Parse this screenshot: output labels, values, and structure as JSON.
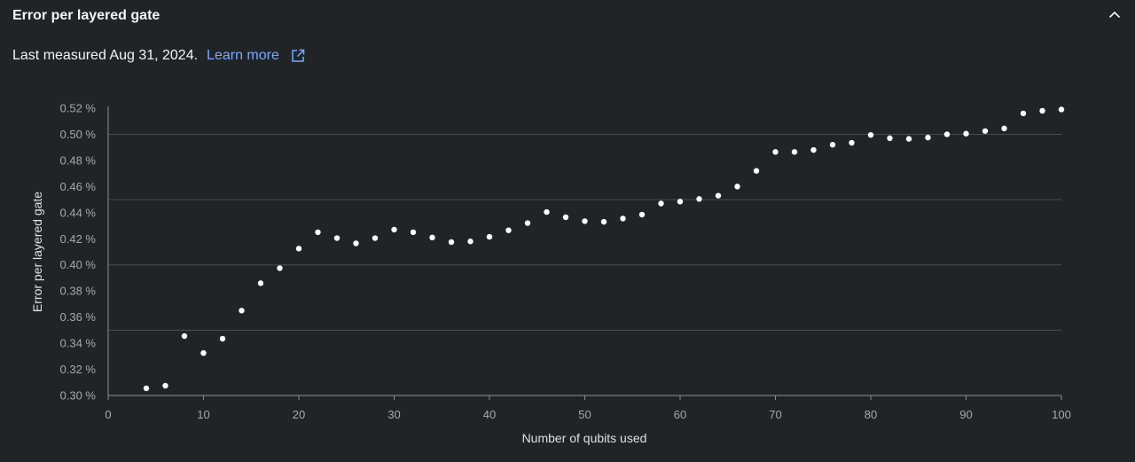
{
  "panel": {
    "title": "Error per layered gate",
    "collapse_icon": "chevron-up-icon"
  },
  "subtitle": {
    "text": "Last measured Aug 31, 2024.",
    "link_label": "Learn more",
    "link_icon": "external-link-icon"
  },
  "colors": {
    "background": "#212427",
    "point": "#ffffff",
    "link": "#78a9ff",
    "grid": "#4a4d50"
  },
  "chart_data": {
    "type": "scatter",
    "title": "",
    "xlabel": "Number of qubits used",
    "ylabel": "Error per layered gate",
    "xlim": [
      0,
      100
    ],
    "ylim": [
      0.3,
      0.52
    ],
    "x_ticks": [
      0,
      10,
      20,
      30,
      40,
      50,
      60,
      70,
      80,
      90,
      100
    ],
    "x_tick_labels": [
      "0",
      "10",
      "20",
      "30",
      "40",
      "50",
      "60",
      "70",
      "80",
      "90",
      "100"
    ],
    "y_ticks": [
      0.3,
      0.32,
      0.34,
      0.36,
      0.38,
      0.4,
      0.42,
      0.44,
      0.46,
      0.48,
      0.5,
      0.52
    ],
    "y_tick_labels": [
      "0.30 %",
      "0.32 %",
      "0.34 %",
      "0.36 %",
      "0.38 %",
      "0.40 %",
      "0.42 %",
      "0.44 %",
      "0.46 %",
      "0.48 %",
      "0.50 %",
      "0.52 %"
    ],
    "grid_y": [
      0.35,
      0.4,
      0.45,
      0.5
    ],
    "series": [
      {
        "x": [
          4,
          6,
          8,
          10,
          12,
          14,
          16,
          18,
          20,
          22,
          24,
          26,
          28,
          30,
          32,
          34,
          36,
          38,
          40,
          42,
          44,
          46,
          48,
          50,
          52,
          54,
          56,
          58,
          60,
          62,
          64,
          66,
          68,
          70,
          72,
          74,
          76,
          78,
          80,
          82,
          84,
          86,
          88,
          90,
          92,
          94,
          96,
          98,
          100
        ],
        "y": [
          0.3055,
          0.3075,
          0.3455,
          0.3325,
          0.3435,
          0.365,
          0.386,
          0.3975,
          0.4125,
          0.425,
          0.4205,
          0.4165,
          0.4205,
          0.427,
          0.425,
          0.421,
          0.4175,
          0.418,
          0.4215,
          0.4265,
          0.432,
          0.4405,
          0.4365,
          0.4335,
          0.433,
          0.4355,
          0.4385,
          0.447,
          0.4485,
          0.4505,
          0.453,
          0.46,
          0.472,
          0.4865,
          0.4865,
          0.488,
          0.492,
          0.4935,
          0.4995,
          0.497,
          0.4965,
          0.4975,
          0.5,
          0.5005,
          0.5025,
          0.5045,
          0.516,
          0.518,
          0.519
        ]
      }
    ]
  }
}
